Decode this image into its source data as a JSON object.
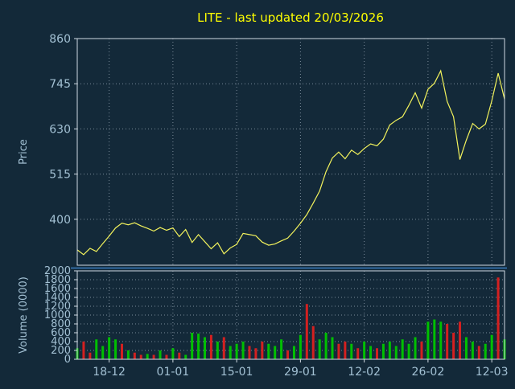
{
  "title": "LITE - last updated 20/03/2026",
  "colors": {
    "background": "#132939",
    "title": "#ffff00",
    "axis_text": "#a3c1d4",
    "frame": "#cfd9e2",
    "grid": "#7a8a99",
    "separator": "#3b7dc0",
    "price_line": "#f2f25c",
    "volume_up": "#00c000",
    "volume_down": "#d42020"
  },
  "chart_data": [
    {
      "type": "line",
      "panel": "price",
      "title": "LITE - last updated 20/03/2026",
      "ylabel": "Price",
      "yticks": [
        400,
        515,
        630,
        745,
        860
      ],
      "ylim": [
        283,
        860
      ],
      "xtick_labels": [
        "18-12",
        "01-01",
        "15-01",
        "29-01",
        "12-02",
        "26-02",
        "12-03"
      ],
      "xtick_indices": [
        5,
        15,
        25,
        35,
        45,
        55,
        65
      ],
      "values": [
        322,
        310,
        326,
        318,
        338,
        357,
        378,
        390,
        386,
        391,
        383,
        377,
        370,
        379,
        372,
        378,
        356,
        374,
        341,
        361,
        343,
        325,
        340,
        312,
        327,
        336,
        364,
        361,
        358,
        342,
        334,
        337,
        345,
        352,
        370,
        390,
        412,
        441,
        472,
        521,
        556,
        571,
        554,
        576,
        565,
        580,
        592,
        587,
        604,
        640,
        652,
        661,
        690,
        722,
        683,
        731,
        746,
        778,
        700,
        661,
        552,
        601,
        644,
        630,
        642,
        701,
        772,
        706
      ],
      "legend": "none",
      "grid": "dotted"
    },
    {
      "type": "bar",
      "panel": "volume",
      "ylabel": "Volume (0000)",
      "yticks": [
        0,
        200,
        400,
        600,
        800,
        1000,
        1200,
        1400,
        1600,
        1800,
        2000
      ],
      "ylim": [
        0,
        2000
      ],
      "values": [
        250,
        400,
        150,
        450,
        300,
        500,
        450,
        350,
        200,
        150,
        100,
        120,
        100,
        200,
        100,
        250,
        150,
        100,
        600,
        580,
        500,
        550,
        400,
        500,
        300,
        350,
        400,
        300,
        250,
        400,
        350,
        300,
        450,
        200,
        300,
        550,
        1250,
        750,
        450,
        600,
        500,
        350,
        400,
        350,
        250,
        400,
        300,
        250,
        350,
        400,
        300,
        450,
        350,
        500,
        400,
        850,
        900,
        850,
        800,
        600,
        850,
        500,
        400,
        300,
        350,
        550,
        1850,
        450
      ],
      "colors": [
        "g",
        "r",
        "r",
        "g",
        "g",
        "g",
        "g",
        "r",
        "g",
        "r",
        "r",
        "g",
        "r",
        "g",
        "r",
        "g",
        "r",
        "g",
        "g",
        "g",
        "g",
        "r",
        "g",
        "r",
        "g",
        "g",
        "g",
        "r",
        "r",
        "r",
        "g",
        "g",
        "g",
        "r",
        "g",
        "g",
        "r",
        "r",
        "g",
        "g",
        "g",
        "r",
        "r",
        "g",
        "r",
        "g",
        "g",
        "r",
        "g",
        "g",
        "g",
        "g",
        "g",
        "g",
        "r",
        "g",
        "g",
        "g",
        "r",
        "r",
        "r",
        "g",
        "g",
        "r",
        "g",
        "g",
        "r",
        "g"
      ],
      "grid": "dotted"
    }
  ]
}
